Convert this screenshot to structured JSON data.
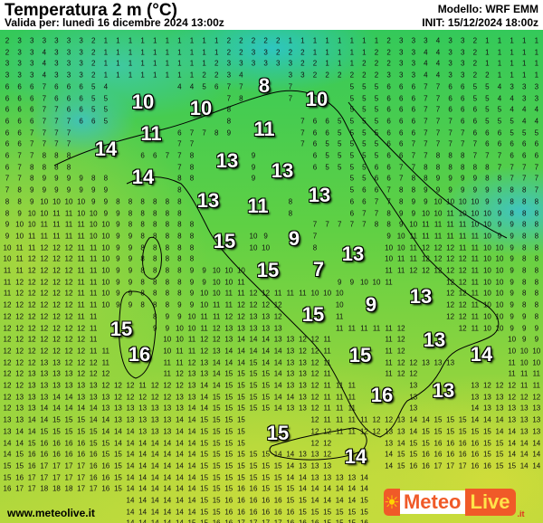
{
  "header": {
    "title": "Temperatura 2 m (°C)",
    "valid": "Valida per: lunedì 16 dicembre 2024 13:00z",
    "model": "Modello: WRF EMM",
    "init": "INIT: 15/12/2024 18:00z"
  },
  "city_labels": [
    "10",
    "10",
    "8",
    "10",
    "11",
    "11",
    "14",
    "14",
    "13",
    "13",
    "13",
    "11",
    "13",
    "15",
    "9",
    "13",
    "15",
    "7",
    "9",
    "13",
    "15",
    "15",
    "13",
    "14",
    "15",
    "16",
    "13",
    "16",
    "15",
    "14"
  ],
  "footer": {
    "site": "www.meteolive.it"
  },
  "logo": {
    "meteo": "Meteo",
    "live": "Live",
    "tld": ".it"
  },
  "colors": {
    "cold": "#2ec6c0",
    "mild": "#34c95a",
    "warm": "#c8dc3c",
    "logo": "#f05a28"
  }
}
